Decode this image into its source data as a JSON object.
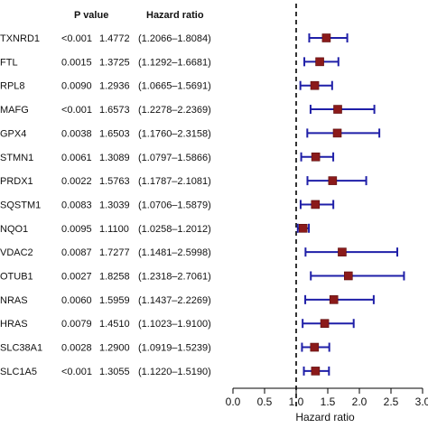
{
  "chart_data": {
    "type": "forest",
    "columns": {
      "pvalue_header": "P value",
      "hr_header": "Hazard   ratio"
    },
    "xlabel": "Hazard ratio",
    "xlim": [
      0.0,
      3.0
    ],
    "x_ticks": [
      "0.0",
      "0.5",
      "1.0",
      "1.5",
      "2.0",
      "2.5",
      "3.0"
    ],
    "reference_line": 1.0,
    "colors": {
      "marker": "#8b1a1a",
      "ci": "#1f1fa8",
      "reference": "#000000"
    },
    "rows": [
      {
        "gene": "TXNRD1",
        "p": "<0.001",
        "hr_text": "1.4772",
        "ci_text": "(1.2066–1.8084)",
        "hr": 1.4772,
        "low": 1.2066,
        "high": 1.8084
      },
      {
        "gene": "FTL",
        "p": "0.0015",
        "hr_text": "1.3725",
        "ci_text": "(1.1292–1.6681)",
        "hr": 1.3725,
        "low": 1.1292,
        "high": 1.6681
      },
      {
        "gene": "RPL8",
        "p": "0.0090",
        "hr_text": "1.2936",
        "ci_text": "(1.0665–1.5691)",
        "hr": 1.2936,
        "low": 1.0665,
        "high": 1.5691
      },
      {
        "gene": "MAFG",
        "p": "<0.001",
        "hr_text": "1.6573",
        "ci_text": "(1.2278–2.2369)",
        "hr": 1.6573,
        "low": 1.2278,
        "high": 2.2369
      },
      {
        "gene": "GPX4",
        "p": "0.0038",
        "hr_text": "1.6503",
        "ci_text": "(1.1760–2.3158)",
        "hr": 1.6503,
        "low": 1.176,
        "high": 2.3158
      },
      {
        "gene": "STMN1",
        "p": "0.0061",
        "hr_text": "1.3089",
        "ci_text": "(1.0797–1.5866)",
        "hr": 1.3089,
        "low": 1.0797,
        "high": 1.5866
      },
      {
        "gene": "PRDX1",
        "p": "0.0022",
        "hr_text": "1.5763",
        "ci_text": "(1.1787–2.1081)",
        "hr": 1.5763,
        "low": 1.1787,
        "high": 2.1081
      },
      {
        "gene": "SQSTM1",
        "p": "0.0083",
        "hr_text": "1.3039",
        "ci_text": "(1.0706–1.5879)",
        "hr": 1.3039,
        "low": 1.0706,
        "high": 1.5879
      },
      {
        "gene": "NQO1",
        "p": "0.0095",
        "hr_text": "1.1100",
        "ci_text": "(1.0258–1.2012)",
        "hr": 1.11,
        "low": 1.0258,
        "high": 1.2012
      },
      {
        "gene": "VDAC2",
        "p": "0.0087",
        "hr_text": "1.7277",
        "ci_text": "(1.1481–2.5998)",
        "hr": 1.7277,
        "low": 1.1481,
        "high": 2.5998
      },
      {
        "gene": "OTUB1",
        "p": "0.0027",
        "hr_text": "1.8258",
        "ci_text": "(1.2318–2.7061)",
        "hr": 1.8258,
        "low": 1.2318,
        "high": 2.7061
      },
      {
        "gene": "NRAS",
        "p": "0.0060",
        "hr_text": "1.5959",
        "ci_text": "(1.1437–2.2269)",
        "hr": 1.5959,
        "low": 1.1437,
        "high": 2.2269
      },
      {
        "gene": "HRAS",
        "p": "0.0079",
        "hr_text": "1.4510",
        "ci_text": "(1.1023–1.9100)",
        "hr": 1.451,
        "low": 1.1023,
        "high": 1.91
      },
      {
        "gene": "SLC38A1",
        "p": "0.0028",
        "hr_text": "1.2900",
        "ci_text": "(1.0919–1.5239)",
        "hr": 1.29,
        "low": 1.0919,
        "high": 1.5239
      },
      {
        "gene": "SLC1A5",
        "p": "<0.001",
        "hr_text": "1.3055",
        "ci_text": "(1.1220–1.5190)",
        "hr": 1.3055,
        "low": 1.122,
        "high": 1.519
      }
    ]
  }
}
